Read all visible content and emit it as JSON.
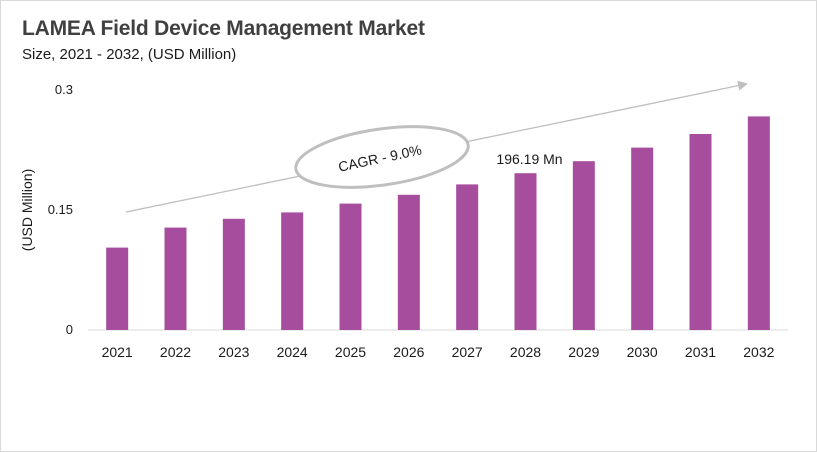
{
  "header": {
    "title": "LAMEA Field Device Management Market",
    "subtitle": "Size, 2021 - 2032, (USD Million)"
  },
  "chart_data": {
    "type": "bar",
    "title": "LAMEA Field Device Management Market",
    "subtitle": "Size, 2021 - 2032, (USD Million)",
    "xlabel": "",
    "ylabel": "(USD Million)",
    "ylim": [
      0,
      0.3
    ],
    "yticks": [
      "0",
      "0.15",
      "0.3"
    ],
    "ytick_values": [
      0,
      0.15,
      0.3
    ],
    "categories": [
      "2021",
      "2022",
      "2023",
      "2024",
      "2025",
      "2026",
      "2027",
      "2028",
      "2029",
      "2030",
      "2031",
      "2032"
    ],
    "values": [
      0.103,
      0.128,
      0.139,
      0.147,
      0.158,
      0.169,
      0.182,
      0.196,
      0.211,
      0.228,
      0.245,
      0.267
    ],
    "bar_color": "#a64d9e",
    "grid": false,
    "legend": "none",
    "annotations": [
      {
        "text": "CAGR - 9.0%"
      },
      {
        "text": "196.19 Mn",
        "category": "2028"
      }
    ]
  }
}
